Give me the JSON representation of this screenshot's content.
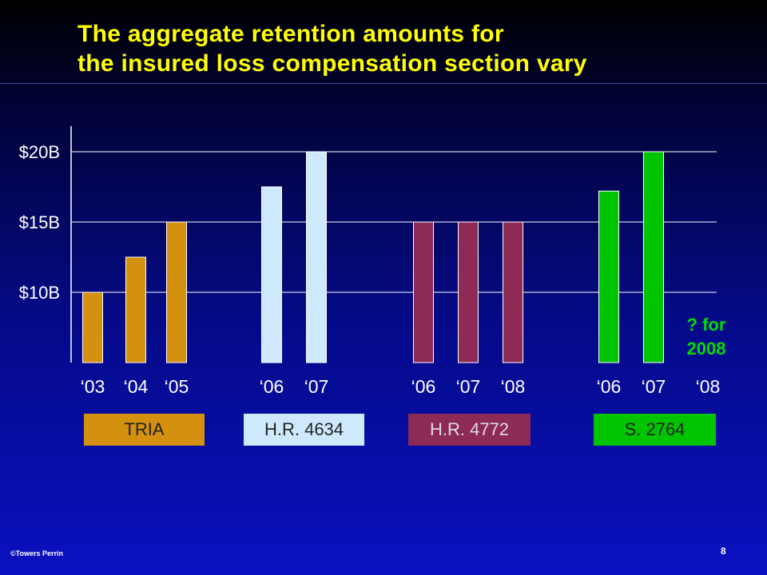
{
  "slide": {
    "title_lines": [
      "The aggregate retention amounts for",
      "the insured loss compensation section vary"
    ],
    "footer": "©Towers Perrin",
    "page_number": "8",
    "annotation_lines": [
      "? for",
      "2008"
    ],
    "colors": {
      "title": "#ffff00",
      "annotation": "#00dd00",
      "axis": "#ffffff"
    }
  },
  "chart_data": {
    "type": "bar",
    "ylim": [
      5,
      21.5
    ],
    "y_ticks": [
      {
        "value": 10,
        "label": "$10B"
      },
      {
        "value": 15,
        "label": "$15B"
      },
      {
        "value": 20,
        "label": "$20B"
      }
    ],
    "groups": [
      {
        "label": "TRIA",
        "color": "#d4910f",
        "text_color": "#222222",
        "bars": [
          {
            "label": "‘03",
            "value": 10
          },
          {
            "label": "‘04",
            "value": 12.5
          },
          {
            "label": "‘05",
            "value": 15
          }
        ]
      },
      {
        "label": "H.R. 4634",
        "color": "#cde9fb",
        "text_color": "#222222",
        "bars": [
          {
            "label": "‘06",
            "value": 17.5
          },
          {
            "label": "‘07",
            "value": 20
          }
        ]
      },
      {
        "label": "H.R. 4772",
        "color": "#8e2a56",
        "text_color": "#dddddd",
        "bars": [
          {
            "label": "‘06",
            "value": 15
          },
          {
            "label": "‘07",
            "value": 15
          },
          {
            "label": "‘08",
            "value": 15
          }
        ]
      },
      {
        "label": "S. 2764",
        "color": "#00c400",
        "text_color": "#222222",
        "bars": [
          {
            "label": "‘06",
            "value": 17.2
          },
          {
            "label": "‘07",
            "value": 20
          },
          {
            "label": "‘08",
            "value": null
          }
        ]
      }
    ]
  }
}
